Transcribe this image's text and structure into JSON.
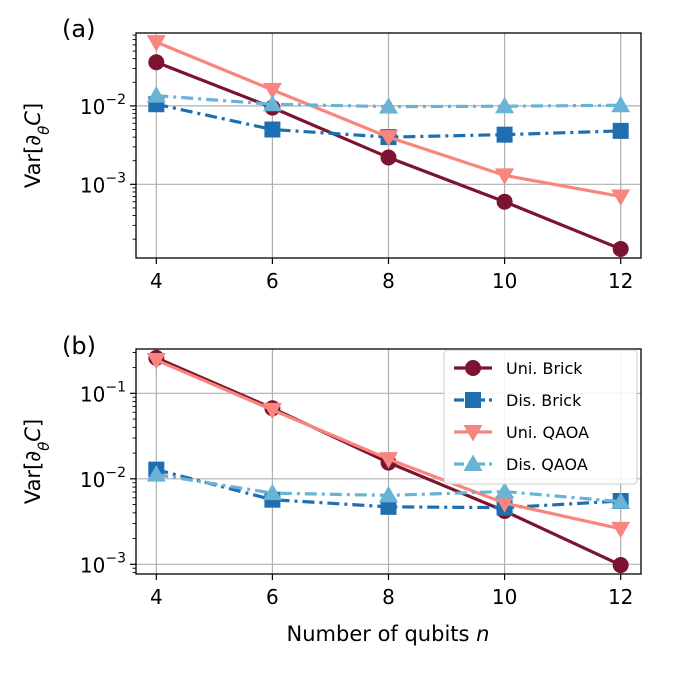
{
  "chart_data": [
    {
      "type": "line",
      "panel_label": "(a)",
      "ylabel": "Var[∂θC]",
      "yscale": "log",
      "ylim": [
        0.000115,
        0.085
      ],
      "yticks": [
        {
          "value": 0.01,
          "base": "10",
          "exp": "−2"
        },
        {
          "value": 0.001,
          "base": "10",
          "exp": "−3"
        }
      ],
      "x": [
        4,
        6,
        8,
        10,
        12
      ],
      "xticks": [
        "4",
        "6",
        "8",
        "10",
        "12"
      ],
      "xlim": [
        3.65,
        12.35
      ],
      "grid": true,
      "series": [
        {
          "name": "Uni. Brick",
          "color": "#7b1430",
          "marker": "circle",
          "dash": "solid",
          "values": [
            0.036,
            0.0095,
            0.0022,
            0.0006,
            0.00015
          ]
        },
        {
          "name": "Dis. Brick",
          "color": "#1f6fb0",
          "marker": "square",
          "dash": "dashdot",
          "values": [
            0.0105,
            0.005,
            0.004,
            0.0043,
            0.0048
          ]
        },
        {
          "name": "Uni. QAOA",
          "color": "#f8857e",
          "marker": "triangle-down",
          "dash": "solid",
          "values": [
            0.065,
            0.016,
            0.004,
            0.0013,
            0.0007
          ]
        },
        {
          "name": "Dis. QAOA",
          "color": "#69b3d6",
          "marker": "triangle-up",
          "dash": "dashdot",
          "values": [
            0.0135,
            0.0105,
            0.0098,
            0.0099,
            0.0102
          ]
        }
      ]
    },
    {
      "type": "line",
      "panel_label": "(b)",
      "ylabel": "Var[∂θC]",
      "xlabel": "Number of qubits n",
      "yscale": "log",
      "ylim": [
        0.00077,
        0.33
      ],
      "yticks": [
        {
          "value": 0.1,
          "base": "10",
          "exp": "−1"
        },
        {
          "value": 0.01,
          "base": "10",
          "exp": "−2"
        },
        {
          "value": 0.001,
          "base": "10",
          "exp": "−3"
        }
      ],
      "x": [
        4,
        6,
        8,
        10,
        12
      ],
      "xticks": [
        "4",
        "6",
        "8",
        "10",
        "12"
      ],
      "xlim": [
        3.65,
        12.35
      ],
      "grid": true,
      "legend_position": "top-right",
      "series": [
        {
          "name": "Uni. Brick",
          "color": "#7b1430",
          "marker": "circle",
          "dash": "solid",
          "values": [
            0.26,
            0.067,
            0.0155,
            0.0042,
            0.00098
          ]
        },
        {
          "name": "Dis. Brick",
          "color": "#1f6fb0",
          "marker": "square",
          "dash": "dashdot",
          "values": [
            0.0128,
            0.0057,
            0.0047,
            0.0046,
            0.0055
          ]
        },
        {
          "name": "Uni. QAOA",
          "color": "#f8857e",
          "marker": "triangle-down",
          "dash": "solid",
          "values": [
            0.245,
            0.064,
            0.017,
            0.0052,
            0.0026
          ]
        },
        {
          "name": "Dis. QAOA",
          "color": "#69b3d6",
          "marker": "triangle-up",
          "dash": "dashdot",
          "values": [
            0.0112,
            0.0068,
            0.0064,
            0.0071,
            0.0054
          ]
        }
      ]
    }
  ]
}
